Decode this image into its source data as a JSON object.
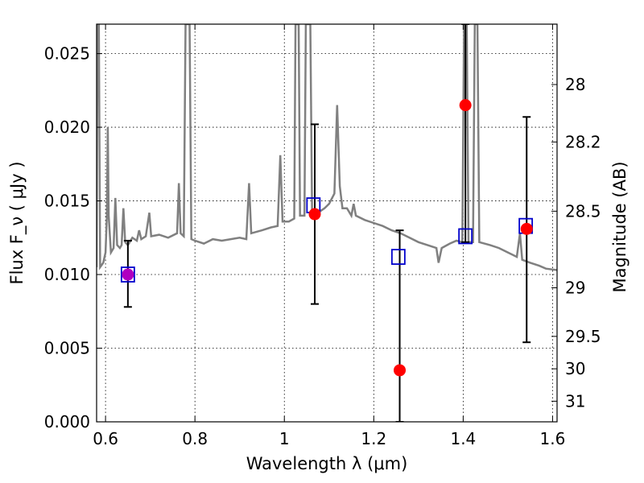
{
  "chart_data": {
    "type": "scatter",
    "xlabel": "Wavelength  λ (μm)",
    "ylabel": "Flux  F_ν  ( μJy )",
    "ylabel_right": "Magnitude (AB)",
    "xlim": [
      0.58,
      1.61
    ],
    "ylim": [
      0,
      0.027
    ],
    "grid": true,
    "x_ticks": [
      {
        "value": 0.6,
        "label": "0.6"
      },
      {
        "value": 0.8,
        "label": "0.8"
      },
      {
        "value": 1.0,
        "label": "1"
      },
      {
        "value": 1.2,
        "label": "1.2"
      },
      {
        "value": 1.4,
        "label": "1.4"
      },
      {
        "value": 1.6,
        "label": "1.6"
      }
    ],
    "y_ticks": [
      {
        "value": 0.0,
        "label": "0.000"
      },
      {
        "value": 0.005,
        "label": "0.005"
      },
      {
        "value": 0.01,
        "label": "0.010"
      },
      {
        "value": 0.015,
        "label": "0.015"
      },
      {
        "value": 0.02,
        "label": "0.020"
      },
      {
        "value": 0.025,
        "label": "0.025"
      }
    ],
    "right_ticks": [
      {
        "flux": 0.0229,
        "label": "28"
      },
      {
        "flux": 0.019,
        "label": "28.2"
      },
      {
        "flux": 0.0143,
        "label": "28.5"
      },
      {
        "flux": 0.0091,
        "label": "29"
      },
      {
        "flux": 0.0058,
        "label": "29.5"
      },
      {
        "flux": 0.0036,
        "label": "30"
      },
      {
        "flux": 0.0014,
        "label": "31"
      }
    ],
    "model_spectrum": {
      "color": "#808080",
      "points": [
        [
          0.58,
          0.0105
        ],
        [
          0.582,
          0.027
        ],
        [
          0.585,
          0.027
        ],
        [
          0.588,
          0.0105
        ],
        [
          0.595,
          0.0108
        ],
        [
          0.6,
          0.0115
        ],
        [
          0.603,
          0.014
        ],
        [
          0.605,
          0.02
        ],
        [
          0.607,
          0.014
        ],
        [
          0.612,
          0.0115
        ],
        [
          0.618,
          0.0118
        ],
        [
          0.622,
          0.0152
        ],
        [
          0.626,
          0.012
        ],
        [
          0.632,
          0.0118
        ],
        [
          0.636,
          0.012
        ],
        [
          0.64,
          0.0145
        ],
        [
          0.644,
          0.0122
        ],
        [
          0.65,
          0.012
        ],
        [
          0.66,
          0.0125
        ],
        [
          0.67,
          0.0123
        ],
        [
          0.675,
          0.013
        ],
        [
          0.68,
          0.0124
        ],
        [
          0.69,
          0.0126
        ],
        [
          0.698,
          0.0142
        ],
        [
          0.702,
          0.0126
        ],
        [
          0.72,
          0.0127
        ],
        [
          0.74,
          0.0125
        ],
        [
          0.76,
          0.0128
        ],
        [
          0.764,
          0.0162
        ],
        [
          0.768,
          0.0128
        ],
        [
          0.775,
          0.0126
        ],
        [
          0.779,
          0.027
        ],
        [
          0.788,
          0.027
        ],
        [
          0.792,
          0.0124
        ],
        [
          0.8,
          0.0123
        ],
        [
          0.82,
          0.0121
        ],
        [
          0.84,
          0.0124
        ],
        [
          0.86,
          0.0123
        ],
        [
          0.88,
          0.0124
        ],
        [
          0.9,
          0.0125
        ],
        [
          0.915,
          0.0124
        ],
        [
          0.921,
          0.0162
        ],
        [
          0.926,
          0.0128
        ],
        [
          0.95,
          0.013
        ],
        [
          0.97,
          0.0132
        ],
        [
          0.985,
          0.0133
        ],
        [
          0.991,
          0.0181
        ],
        [
          0.996,
          0.0136
        ],
        [
          1.01,
          0.0136
        ],
        [
          1.022,
          0.0138
        ],
        [
          1.025,
          0.027
        ],
        [
          1.032,
          0.027
        ],
        [
          1.035,
          0.014
        ],
        [
          1.045,
          0.014
        ],
        [
          1.048,
          0.027
        ],
        [
          1.058,
          0.027
        ],
        [
          1.062,
          0.014
        ],
        [
          1.08,
          0.0143
        ],
        [
          1.09,
          0.0145
        ],
        [
          1.1,
          0.0148
        ],
        [
          1.112,
          0.0155
        ],
        [
          1.118,
          0.0215
        ],
        [
          1.124,
          0.016
        ],
        [
          1.13,
          0.0145
        ],
        [
          1.14,
          0.0145
        ],
        [
          1.15,
          0.014
        ],
        [
          1.155,
          0.0148
        ],
        [
          1.16,
          0.014
        ],
        [
          1.18,
          0.0137
        ],
        [
          1.2,
          0.0135
        ],
        [
          1.22,
          0.0133
        ],
        [
          1.24,
          0.013
        ],
        [
          1.26,
          0.0128
        ],
        [
          1.28,
          0.0125
        ],
        [
          1.3,
          0.0122
        ],
        [
          1.32,
          0.012
        ],
        [
          1.34,
          0.0118
        ],
        [
          1.345,
          0.0108
        ],
        [
          1.352,
          0.0118
        ],
        [
          1.37,
          0.0121
        ],
        [
          1.385,
          0.0123
        ],
        [
          1.398,
          0.0122
        ],
        [
          1.402,
          0.027
        ],
        [
          1.408,
          0.027
        ],
        [
          1.412,
          0.0122
        ],
        [
          1.422,
          0.0122
        ],
        [
          1.426,
          0.027
        ],
        [
          1.432,
          0.027
        ],
        [
          1.436,
          0.0122
        ],
        [
          1.46,
          0.012
        ],
        [
          1.48,
          0.0118
        ],
        [
          1.5,
          0.0115
        ],
        [
          1.52,
          0.0112
        ],
        [
          1.527,
          0.0128
        ],
        [
          1.532,
          0.011
        ],
        [
          1.55,
          0.0108
        ],
        [
          1.57,
          0.0106
        ],
        [
          1.585,
          0.0104
        ],
        [
          1.61,
          0.0103
        ]
      ]
    },
    "model_photometry": {
      "marker": "open-square",
      "color": "#0000cc",
      "points": [
        {
          "x": 0.65,
          "y": 0.01
        },
        {
          "x": 1.065,
          "y": 0.0147
        },
        {
          "x": 1.255,
          "y": 0.0112
        },
        {
          "x": 1.405,
          "y": 0.0126
        },
        {
          "x": 1.54,
          "y": 0.0133
        }
      ]
    },
    "observed": {
      "marker": "filled-circle",
      "color": "#ff0000",
      "points": [
        {
          "x": 0.65,
          "y": 0.01,
          "yerr_low": 0.0078,
          "yerr_high": 0.0123,
          "color": "#b000c0"
        },
        {
          "x": 1.068,
          "y": 0.0141,
          "yerr_low": 0.008,
          "yerr_high": 0.0202
        },
        {
          "x": 1.258,
          "y": 0.0035,
          "yerr_low": 0.0,
          "yerr_high": 0.013
        },
        {
          "x": 1.405,
          "y": 0.0215,
          "yerr_low": 0.0122,
          "yerr_high": 0.027
        },
        {
          "x": 1.542,
          "y": 0.0131,
          "yerr_low": 0.0054,
          "yerr_high": 0.0207
        }
      ]
    }
  }
}
